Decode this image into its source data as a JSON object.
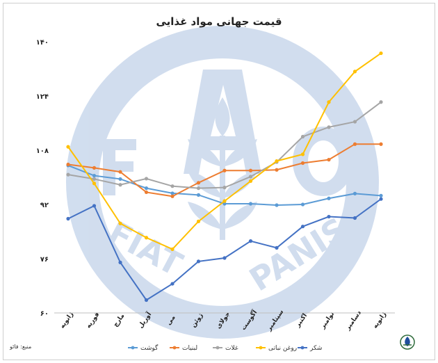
{
  "chart_data": {
    "type": "line",
    "title": "قیمت جهانی مواد غذایی",
    "source_note": "منبع: فائو",
    "xlabel": "",
    "ylabel": "",
    "ylim": [
      60,
      140
    ],
    "yticks": [
      "۶۰",
      "۷۶",
      "۹۲",
      "۱۰۸",
      "۱۲۴",
      "۱۴۰"
    ],
    "ytick_values": [
      60,
      76,
      92,
      108,
      124,
      140
    ],
    "grid": false,
    "legend_position": "bottom",
    "categories": [
      "ژانویه",
      "فوریه",
      "مارچ",
      "آوریل",
      "می",
      "ژوئن",
      "جولای",
      "آگوست",
      "سپتامبر",
      "اکتبر",
      "نوامبر",
      "دسامبر",
      "ژانویه"
    ],
    "series": [
      {
        "name": "گوشت",
        "color": "#5b9bd5",
        "values": [
          103.5,
          100.5,
          99.5,
          96.8,
          95.3,
          94.8,
          92.2,
          92.2,
          91.8,
          92,
          93.8,
          95.2,
          94.6
        ]
      },
      {
        "name": "لبنیات",
        "color": "#ed7d31",
        "values": [
          103.8,
          102.8,
          101.6,
          95.6,
          94.4,
          98.4,
          102,
          102,
          102.2,
          104.2,
          105.2,
          109.8,
          109.8
        ]
      },
      {
        "name": "غلات",
        "color": "#a5a5a5",
        "values": [
          100.8,
          99.5,
          97.8,
          99.6,
          97.4,
          96.8,
          97,
          100.2,
          104.5,
          112,
          114.8,
          116.4,
          122.2
        ]
      },
      {
        "name": "روغن نباتی",
        "color": "#ffc000",
        "values": [
          109,
          98.2,
          86.4,
          82.2,
          78.8,
          87,
          93,
          98.9,
          104.8,
          106.8,
          122.2,
          131.2,
          136.6
        ]
      },
      {
        "name": "شکر",
        "color": "#4472c4",
        "values": [
          87.8,
          91.6,
          74.9,
          63.8,
          68.6,
          75.2,
          76.2,
          81.2,
          79.2,
          85.5,
          88.4,
          88,
          93.6
        ]
      }
    ]
  },
  "colors": {
    "watermark": "#c9d8ec",
    "axis": "#bfbfbf",
    "text": "#222222"
  }
}
